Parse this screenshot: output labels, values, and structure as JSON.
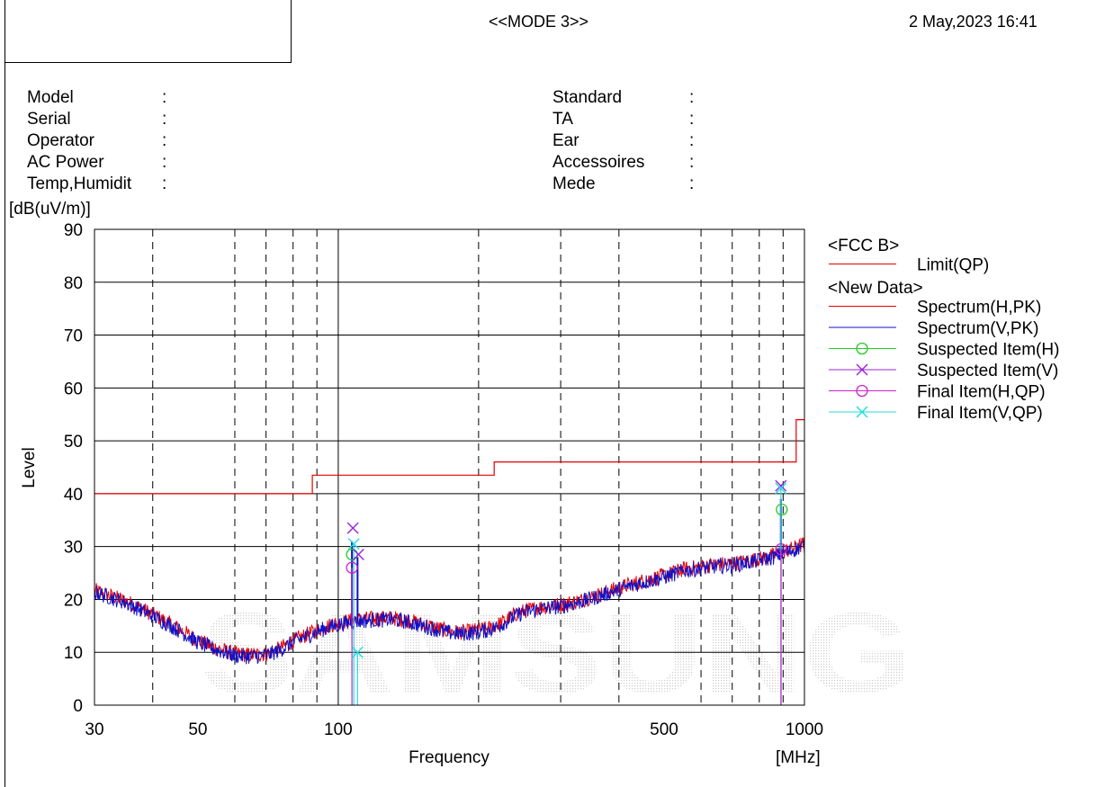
{
  "header": {
    "mode_title": "<<MODE 3>>",
    "timestamp": "2 May,2023 16:41"
  },
  "info_left": [
    {
      "label": "Model"
    },
    {
      "label": "Serial"
    },
    {
      "label": "Operator"
    },
    {
      "label": "AC Power"
    },
    {
      "label": "Temp,Humidit"
    }
  ],
  "info_right": [
    {
      "label": "Standard"
    },
    {
      "label": "TA"
    },
    {
      "label": "Ear"
    },
    {
      "label": "Accessoires"
    },
    {
      "label": "Mede"
    }
  ],
  "info_separator": ":",
  "watermark": "SAMSUNG",
  "colors": {
    "limit": "#e60000",
    "spectrum_h": "#e60000",
    "spectrum_v": "#1010c8",
    "suspected_h": "#22cc22",
    "suspected_v": "#9922dd",
    "final_h": "#cc22cc",
    "final_v": "#22dddd"
  },
  "chart_data": {
    "type": "line",
    "xscale": "log",
    "xlim": [
      30,
      1000
    ],
    "ylim": [
      0,
      90
    ],
    "xlabel": "Frequency",
    "xunit": "[MHz]",
    "ylabel": "Level",
    "yunit": "[dB(uV/m)]",
    "x_ticks": [
      30,
      50,
      100,
      500,
      1000
    ],
    "y_ticks": [
      0,
      10,
      20,
      30,
      40,
      50,
      60,
      70,
      80,
      90
    ],
    "x_minor_grid": [
      40,
      60,
      70,
      80,
      90,
      200,
      300,
      400,
      600,
      700,
      800,
      900
    ],
    "legend": {
      "position": "right",
      "groups": [
        {
          "title": "<FCC B>",
          "entries": [
            {
              "label": "Limit(QP)",
              "series": "limit",
              "marker": "none"
            }
          ]
        },
        {
          "title": "<New Data>",
          "entries": [
            {
              "label": "Spectrum(H,PK)",
              "series": "spectrum_h",
              "marker": "none"
            },
            {
              "label": "Spectrum(V,PK)",
              "series": "spectrum_v",
              "marker": "none"
            },
            {
              "label": "Suspected Item(H)",
              "series": "suspected_h",
              "marker": "circle"
            },
            {
              "label": "Suspected Item(V)",
              "series": "suspected_v",
              "marker": "x"
            },
            {
              "label": "Final Item(H,QP)",
              "series": "final_h",
              "marker": "circle"
            },
            {
              "label": "Final Item(V,QP)",
              "series": "final_v",
              "marker": "x"
            }
          ]
        }
      ]
    },
    "limit": {
      "name": "Limit(QP)",
      "points": [
        [
          30,
          40
        ],
        [
          88,
          40
        ],
        [
          88,
          43.5
        ],
        [
          216,
          43.5
        ],
        [
          216,
          46
        ],
        [
          960,
          46
        ],
        [
          960,
          54
        ],
        [
          1000,
          54
        ]
      ]
    },
    "spectrum_envelope": {
      "freq": [
        30,
        35,
        40,
        45,
        50,
        55,
        60,
        65,
        70,
        75,
        80,
        85,
        90,
        95,
        100,
        105,
        110,
        115,
        120,
        130,
        140,
        150,
        160,
        170,
        180,
        190,
        200,
        210,
        220,
        230,
        240,
        250,
        270,
        300,
        330,
        360,
        400,
        450,
        500,
        550,
        600,
        650,
        700,
        750,
        800,
        850,
        900,
        950,
        1000
      ],
      "level": [
        21.5,
        19.5,
        17,
        14.5,
        12,
        10.5,
        9.5,
        9.3,
        9.5,
        10.5,
        12,
        13,
        14,
        14.8,
        15.3,
        15.7,
        16,
        16.1,
        16.2,
        16.3,
        15.9,
        15.2,
        14.6,
        13.9,
        13.6,
        13.7,
        14,
        14.3,
        15,
        16,
        17,
        17.6,
        18.3,
        18.8,
        19.6,
        20.6,
        22,
        23.3,
        24.3,
        25.5,
        26,
        26.4,
        26.6,
        27,
        27.5,
        28,
        28.8,
        29.5,
        30.3
      ],
      "noise_db": 1.5
    },
    "spikes": [
      {
        "freq": 107,
        "level": 31,
        "series": "spectrum_v"
      },
      {
        "freq": 110,
        "level": 28,
        "series": "spectrum_v"
      },
      {
        "freq": 890,
        "level": 39,
        "series": "spectrum_v"
      }
    ],
    "suspected_h": [
      {
        "freq": 107,
        "level": 28.5
      },
      {
        "freq": 894,
        "level": 37
      }
    ],
    "suspected_v": [
      {
        "freq": 107.5,
        "level": 33.5
      },
      {
        "freq": 110.5,
        "level": 28.5
      },
      {
        "freq": 890,
        "level": 41.5
      }
    ],
    "final_h": [
      {
        "freq": 107,
        "level": 26
      },
      {
        "freq": 891,
        "level": 29.5
      }
    ],
    "final_v": [
      {
        "freq": 108,
        "level": 30.5
      },
      {
        "freq": 110,
        "level": 10
      },
      {
        "freq": 890,
        "level": 41
      }
    ]
  }
}
